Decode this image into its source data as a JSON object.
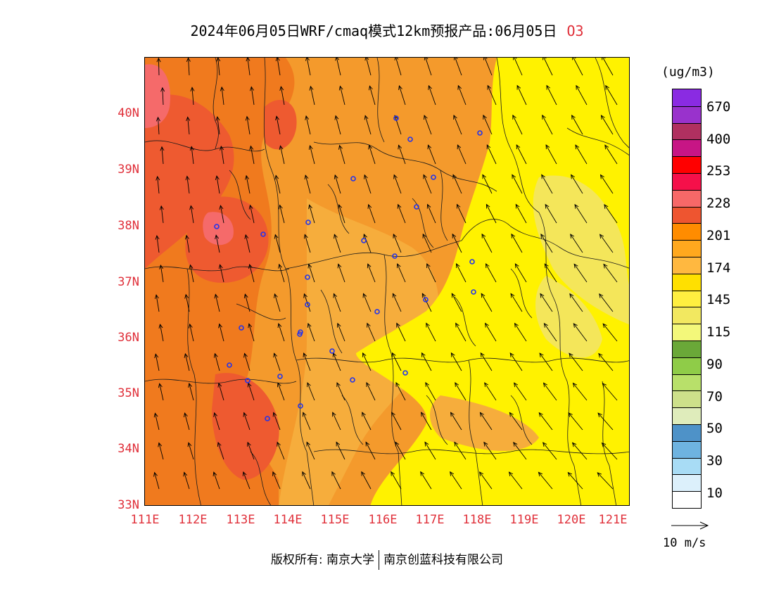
{
  "title": {
    "text": "2024年06月05日WRF/cmaq模式12km预报产品:06月05日",
    "pollutant": "O3"
  },
  "axes": {
    "lat_labels": [
      "40N",
      "39N",
      "38N",
      "37N",
      "36N",
      "35N",
      "34N",
      "33N"
    ],
    "lon_labels": [
      "111E",
      "112E",
      "113E",
      "114E",
      "115E",
      "116E",
      "117E",
      "118E",
      "119E",
      "120E",
      "121E"
    ],
    "label_color": "#e0303a"
  },
  "legend": {
    "unit": "(ug/m3)",
    "labels": [
      "670",
      "400",
      "253",
      "228",
      "201",
      "174",
      "145",
      "115",
      "90",
      "70",
      "50",
      "30",
      "10"
    ],
    "colors": [
      "#8a2be2",
      "#9932cc",
      "#b03060",
      "#c71585",
      "#ff0000",
      "#f5104a",
      "#f76868",
      "#ee5530",
      "#ff8c00",
      "#ffa81e",
      "#ffb840",
      "#ffe000",
      "#ffef40",
      "#f2e860",
      "#f3f87a",
      "#6aa838",
      "#8fcc48",
      "#b8e06a",
      "#cde08a",
      "#dfecbb",
      "#4e92c8",
      "#6eb3e0",
      "#a8dcf5",
      "#dcf0fb",
      "#ffffff"
    ]
  },
  "wind_reference": {
    "label": "10 m/s"
  },
  "footer": {
    "copyright": "版权所有: 南京大学",
    "company": "南京创蓝科技有限公司"
  },
  "map_colors": {
    "orange_dark": "#f07a1e",
    "orange": "#f49a2c",
    "orange_light": "#f6ad3c",
    "yellow": "#fff200",
    "yellow_light": "#f4e65a",
    "red_orange": "#ee5a30",
    "pink_red": "#f56a6a"
  }
}
